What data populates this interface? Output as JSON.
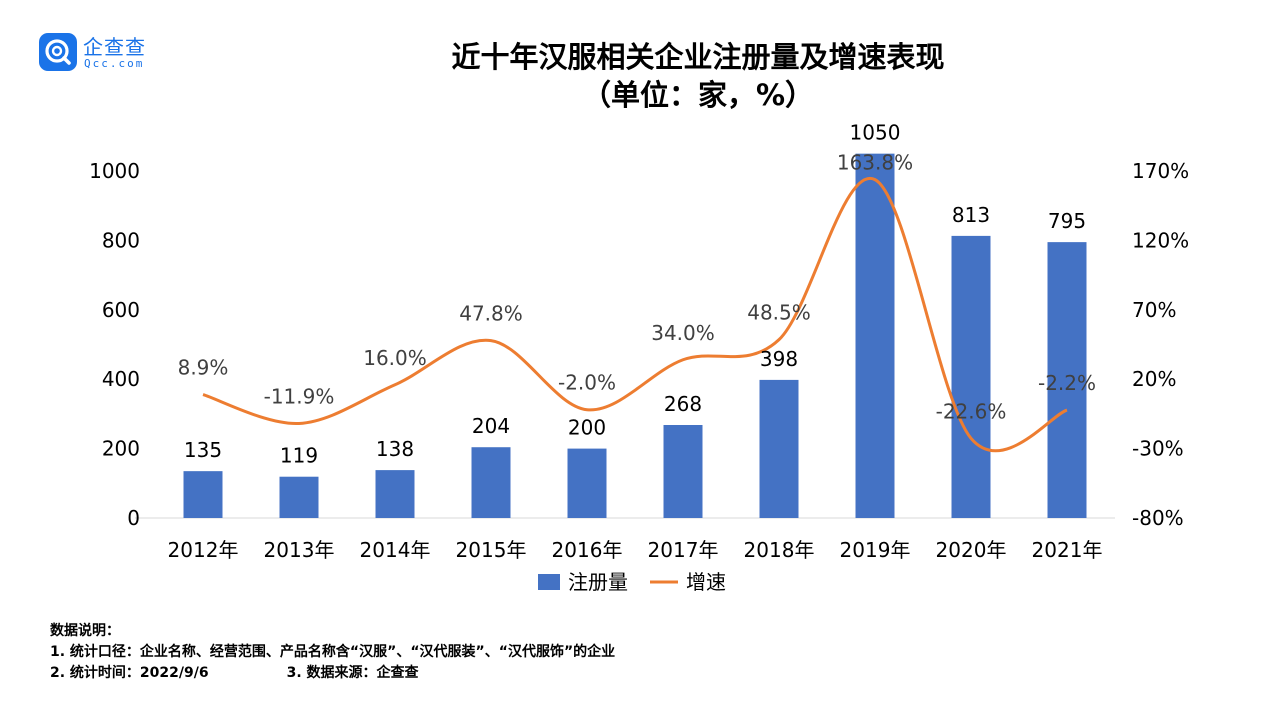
{
  "logo": {
    "name": "企查查",
    "domain": "Qcc.com",
    "icon": "magnifier-q-logo-icon",
    "color": "#1a73e8"
  },
  "title": "近十年汉服相关企业注册量及增速表现",
  "subtitle": "（单位：家，%）",
  "colors": {
    "bar": "#4472c4",
    "line": "#ed7d31",
    "axis_text": "#000000",
    "label_text": "#404040"
  },
  "chart_data": {
    "type": "bar",
    "title": "近十年汉服相关企业注册量及增速表现",
    "subtitle": "（单位：家，%）",
    "categories": [
      "2012年",
      "2013年",
      "2014年",
      "2015年",
      "2016年",
      "2017年",
      "2018年",
      "2019年",
      "2020年",
      "2021年"
    ],
    "series": [
      {
        "name": "注册量",
        "type": "bar",
        "axis": "left",
        "values": [
          135,
          119,
          138,
          204,
          200,
          268,
          398,
          1050,
          813,
          795
        ],
        "labels": [
          "135",
          "119",
          "138",
          "204",
          "200",
          "268",
          "398",
          "1050",
          "813",
          "795"
        ]
      },
      {
        "name": "增速",
        "type": "line",
        "axis": "right",
        "smooth": true,
        "values": [
          8.9,
          -11.9,
          16.0,
          47.8,
          -2.0,
          34.0,
          48.5,
          163.8,
          -22.6,
          -2.2
        ],
        "labels": [
          "8.9%",
          "-11.9%",
          "16.0%",
          "47.8%",
          "-2.0%",
          "34.0%",
          "48.5%",
          "163.8%",
          "-22.6%",
          "-2.2%"
        ]
      }
    ],
    "y_left": {
      "ticks": [
        "0",
        "200",
        "400",
        "600",
        "800",
        "1000"
      ],
      "ylim": [
        0,
        1000
      ]
    },
    "y_right": {
      "ticks": [
        "-80%",
        "-30%",
        "20%",
        "70%",
        "120%",
        "170%"
      ],
      "ylim": [
        -80,
        170
      ]
    },
    "grid": false,
    "legend": {
      "position": "bottom",
      "items": [
        "注册量",
        "增速"
      ]
    }
  },
  "notes": {
    "heading": "数据说明：",
    "line1": "1. 统计口径：企业名称、经营范围、产品名称含“汉服”、“汉代服装”、“汉代服饰”的企业",
    "line2a": "2. 统计时间：2022/9/6",
    "line2b": "3. 数据来源：企查查"
  }
}
